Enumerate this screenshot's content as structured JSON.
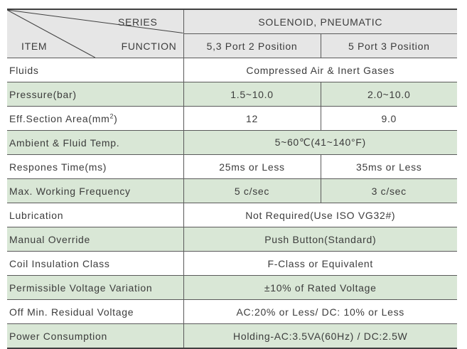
{
  "header": {
    "series_label": "SERIES",
    "function_label": "FUNCTION",
    "item_label": "ITEM",
    "series_value": "SOLENOID, PNEUMATIC",
    "function_values": [
      "5,3 Port 2 Position",
      "5 Port 3 Position"
    ]
  },
  "rows": [
    {
      "label": "Fluids",
      "merged": "Compressed Air & Inert Gases"
    },
    {
      "label": "Pressure(bar)",
      "col1": "1.5~10.0",
      "col2": "2.0~10.0"
    },
    {
      "label": "Eff.Section Area(mm",
      "label_sup": "2",
      "label_suffix": ")",
      "col1": "12",
      "col2": "9.0"
    },
    {
      "label": "Ambient & Fluid Temp.",
      "merged": "5~60℃(41~140°F)"
    },
    {
      "label": "Respones Time(ms)",
      "col1": "25ms or Less",
      "col2": "35ms or Less"
    },
    {
      "label": "Max. Working Frequency",
      "col1": "5 c/sec",
      "col2": "3 c/sec"
    },
    {
      "label": "Lubrication",
      "merged": "Not Required(Use ISO VG32#)"
    },
    {
      "label": "Manual Override",
      "merged": "Push Button(Standard)"
    },
    {
      "label": "Coil Insulation Class",
      "merged": "F-Class or Equivalent"
    },
    {
      "label": "Permissible Voltage Variation",
      "merged": "±10% of Rated Voltage"
    },
    {
      "label": "Off Min. Residual Voltage",
      "merged": "AC:20% or Less/ DC: 10% or Less"
    },
    {
      "label": "Power Consumption",
      "merged": "Holding-AC:3.5VA(60Hz) / DC:2.5W"
    }
  ],
  "colors": {
    "green_row": "#d9e7d6",
    "header_bg": "#e6e6e6",
    "rule": "#404040"
  }
}
